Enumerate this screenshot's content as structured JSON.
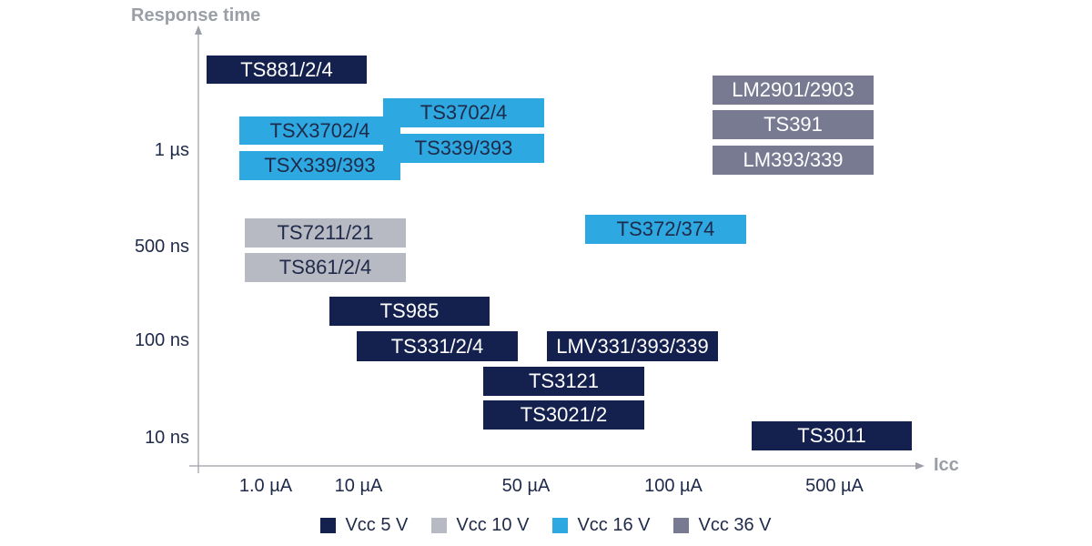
{
  "colors": {
    "vcc5": "#14214f",
    "vcc10": "#b8bac3",
    "vcc16": "#2ea8e0",
    "vcc36": "#787a92",
    "axis": "#9a9ea6",
    "text_dark": "#1f2a4a",
    "text_light": "#ffffff"
  },
  "axes": {
    "y_title": "Response time",
    "x_title": "Icc",
    "y_ticks": [
      "1 µs",
      "500 ns",
      "100 ns",
      "10 ns"
    ],
    "x_ticks": [
      "1.0 µA",
      "10 µA",
      "50 µA",
      "100 µA",
      "500 µA"
    ]
  },
  "products": [
    {
      "label": "TS881/2/4",
      "supply": "vcc5"
    },
    {
      "label": "TS3702/4",
      "supply": "vcc16"
    },
    {
      "label": "TSX3702/4",
      "supply": "vcc16"
    },
    {
      "label": "TS339/393",
      "supply": "vcc16"
    },
    {
      "label": "TSX339/393",
      "supply": "vcc16"
    },
    {
      "label": "LM2901/2903",
      "supply": "vcc36"
    },
    {
      "label": "TS391",
      "supply": "vcc36"
    },
    {
      "label": "LM393/339",
      "supply": "vcc36"
    },
    {
      "label": "TS7211/21",
      "supply": "vcc10"
    },
    {
      "label": "TS861/2/4",
      "supply": "vcc10"
    },
    {
      "label": "TS372/374",
      "supply": "vcc16"
    },
    {
      "label": "TS985",
      "supply": "vcc5"
    },
    {
      "label": "TS331/2/4",
      "supply": "vcc5"
    },
    {
      "label": "LMV331/393/339",
      "supply": "vcc5"
    },
    {
      "label": "TS3121",
      "supply": "vcc5"
    },
    {
      "label": "TS3021/2",
      "supply": "vcc5"
    },
    {
      "label": "TS3011",
      "supply": "vcc5"
    }
  ],
  "legend": [
    {
      "key": "vcc5",
      "label": "Vcc 5 V"
    },
    {
      "key": "vcc10",
      "label": "Vcc 10 V"
    },
    {
      "key": "vcc16",
      "label": "Vcc 16 V"
    },
    {
      "key": "vcc36",
      "label": "Vcc 36 V"
    }
  ]
}
